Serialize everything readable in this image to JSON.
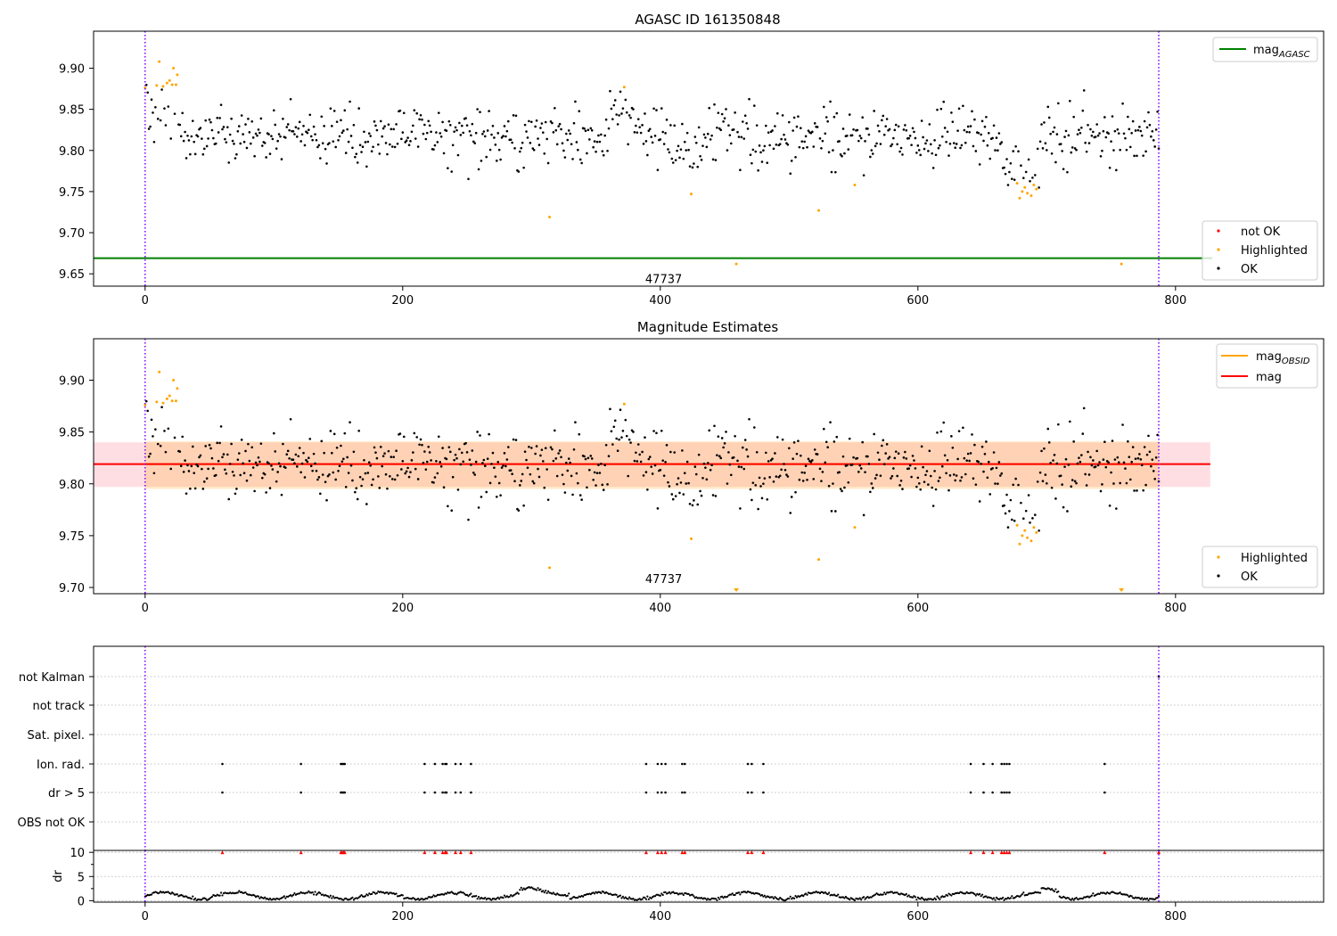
{
  "chart_data": [
    {
      "panel": "top",
      "type": "scatter",
      "title": "AGASC ID 161350848",
      "xlim": [
        -40,
        915
      ],
      "ylim": [
        9.635,
        9.945
      ],
      "x_ticks": [
        0,
        200,
        400,
        600,
        800
      ],
      "y_ticks": [
        "9.65",
        "9.70",
        "9.75",
        "9.80",
        "9.85",
        "9.90"
      ],
      "hline": {
        "name": "mag_AGASC",
        "y": 9.669,
        "color": "#008000"
      },
      "vlines": [
        0,
        787
      ],
      "annotation": {
        "text": "47737",
        "x": 395,
        "y": 9.642
      },
      "legend_lines": [
        {
          "label": "mag",
          "sub": "AGASC",
          "color": "#008000"
        }
      ],
      "legend_points": [
        {
          "label": "not OK",
          "color": "#ff0000"
        },
        {
          "label": "Highlighted",
          "color": "#ffa500"
        },
        {
          "label": "OK",
          "color": "#000000"
        }
      ],
      "highlighted": [
        [
          0,
          9.876
        ],
        [
          9,
          9.879
        ],
        [
          11,
          9.908
        ],
        [
          14,
          9.878
        ],
        [
          17,
          9.882
        ],
        [
          19,
          9.885
        ],
        [
          21,
          9.88
        ],
        [
          22,
          9.9
        ],
        [
          24,
          9.88
        ],
        [
          25,
          9.892
        ],
        [
          314,
          9.719
        ],
        [
          372,
          9.877
        ],
        [
          424,
          9.747
        ],
        [
          459,
          9.662
        ],
        [
          523,
          9.727
        ],
        [
          551,
          9.758
        ],
        [
          677,
          9.76
        ],
        [
          679,
          9.742
        ],
        [
          681,
          9.75
        ],
        [
          683,
          9.755
        ],
        [
          685,
          9.748
        ],
        [
          688,
          9.745
        ],
        [
          690,
          9.758
        ],
        [
          692,
          9.753
        ],
        [
          758,
          9.662
        ]
      ]
    },
    {
      "panel": "middle",
      "type": "scatter",
      "title": "Magnitude Estimates",
      "xlim": [
        -40,
        915
      ],
      "ylim": [
        9.694,
        9.94
      ],
      "x_ticks": [
        0,
        200,
        400,
        600,
        800
      ],
      "y_ticks": [
        "9.70",
        "9.75",
        "9.80",
        "9.85",
        "9.90"
      ],
      "mean_mag": 9.819,
      "band_outer": [
        9.797,
        9.84
      ],
      "band_inner": [
        9.795,
        9.841
      ],
      "band_outer_x": [
        -40,
        827
      ],
      "band_inner_x": [
        0,
        787
      ],
      "vlines": [
        0,
        787
      ],
      "annotation": {
        "text": "47737",
        "x": 395,
        "y": 9.699
      },
      "legend_lines": [
        {
          "label": "mag",
          "sub": "OBSID",
          "color": "#ffa500"
        },
        {
          "label": "mag",
          "sub": "",
          "color": "#ff0000"
        }
      ],
      "legend_points": [
        {
          "label": "Highlighted",
          "color": "#ffa500"
        },
        {
          "label": "OK",
          "color": "#000000"
        }
      ],
      "highlighted": [
        [
          0,
          9.876
        ],
        [
          9,
          9.879
        ],
        [
          11,
          9.908
        ],
        [
          14,
          9.878
        ],
        [
          17,
          9.882
        ],
        [
          19,
          9.885
        ],
        [
          21,
          9.88
        ],
        [
          22,
          9.9
        ],
        [
          24,
          9.88
        ],
        [
          25,
          9.892
        ],
        [
          314,
          9.719
        ],
        [
          372,
          9.877
        ],
        [
          424,
          9.747
        ],
        [
          523,
          9.727
        ],
        [
          551,
          9.758
        ],
        [
          677,
          9.76
        ],
        [
          679,
          9.742
        ],
        [
          681,
          9.75
        ],
        [
          683,
          9.755
        ],
        [
          685,
          9.748
        ],
        [
          688,
          9.745
        ],
        [
          690,
          9.758
        ],
        [
          692,
          9.753
        ]
      ],
      "clipped_low": [
        459,
        758
      ]
    },
    {
      "panel": "flags",
      "type": "scatter",
      "xlim": [
        -40,
        915
      ],
      "categories": [
        "not Kalman",
        "not track",
        "Sat. pixel.",
        "Ion. rad.",
        "dr > 5",
        "OBS not OK"
      ],
      "vlines": [
        0,
        787
      ],
      "ion_rad_x": [
        60,
        121,
        152,
        153,
        154,
        155,
        217,
        225,
        231,
        233,
        234,
        241,
        245,
        253,
        389,
        398,
        401,
        404,
        417,
        419,
        468,
        471,
        480,
        641,
        651,
        658,
        665,
        667,
        669,
        671,
        745
      ],
      "dr_gt5_x": [
        60,
        121,
        152,
        153,
        154,
        155,
        217,
        225,
        231,
        233,
        234,
        241,
        245,
        253,
        389,
        398,
        401,
        404,
        417,
        419,
        468,
        471,
        480,
        641,
        651,
        658,
        665,
        667,
        669,
        671,
        745
      ],
      "not_kalman_x": [
        787
      ]
    },
    {
      "panel": "dr",
      "type": "scatter",
      "ylabel": "dr",
      "xlim": [
        -40,
        915
      ],
      "ylim": [
        -0.3,
        10.4
      ],
      "x_ticks": [
        0,
        200,
        400,
        600,
        800
      ],
      "y_ticks": [
        0,
        5,
        10
      ],
      "capped_at": 10,
      "capped_x": [
        60,
        121,
        152,
        153,
        154,
        155,
        217,
        225,
        231,
        233,
        234,
        241,
        245,
        253,
        389,
        398,
        401,
        404,
        417,
        419,
        468,
        471,
        480,
        641,
        651,
        658,
        665,
        667,
        669,
        671,
        745,
        787
      ]
    }
  ]
}
